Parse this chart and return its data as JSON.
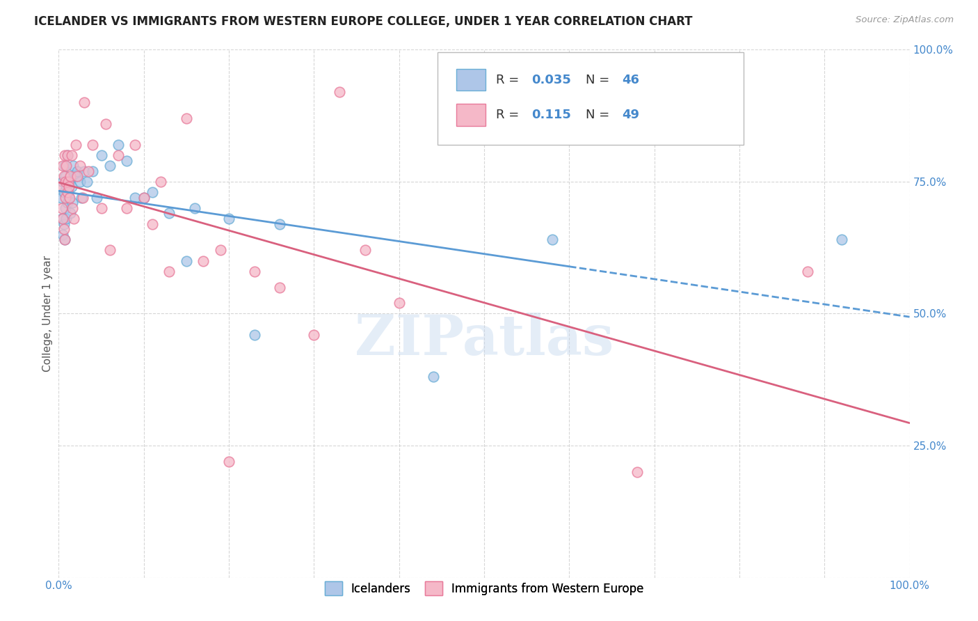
{
  "title": "ICELANDER VS IMMIGRANTS FROM WESTERN EUROPE COLLEGE, UNDER 1 YEAR CORRELATION CHART",
  "source": "Source: ZipAtlas.com",
  "ylabel": "College, Under 1 year",
  "legend_labels": [
    "Icelanders",
    "Immigrants from Western Europe"
  ],
  "R_blue": 0.035,
  "N_blue": 46,
  "R_pink": 0.115,
  "N_pink": 49,
  "blue_color": "#aec6e8",
  "pink_color": "#f5b8c8",
  "blue_edge_color": "#6aaed6",
  "pink_edge_color": "#e87a9a",
  "blue_line_color": "#5b9bd5",
  "pink_line_color": "#d9607e",
  "title_color": "#222222",
  "axis_color": "#4488cc",
  "watermark": "ZIPatlas",
  "blue_scatter_x": [
    0.003,
    0.004,
    0.005,
    0.005,
    0.006,
    0.006,
    0.007,
    0.007,
    0.008,
    0.008,
    0.009,
    0.009,
    0.01,
    0.01,
    0.011,
    0.012,
    0.013,
    0.014,
    0.015,
    0.016,
    0.017,
    0.018,
    0.02,
    0.022,
    0.025,
    0.027,
    0.03,
    0.033,
    0.04,
    0.045,
    0.05,
    0.06,
    0.07,
    0.08,
    0.09,
    0.1,
    0.11,
    0.13,
    0.15,
    0.16,
    0.2,
    0.23,
    0.26,
    0.44,
    0.58,
    0.92
  ],
  "blue_scatter_y": [
    0.72,
    0.68,
    0.75,
    0.65,
    0.73,
    0.67,
    0.78,
    0.64,
    0.76,
    0.7,
    0.74,
    0.68,
    0.8,
    0.71,
    0.73,
    0.72,
    0.75,
    0.69,
    0.74,
    0.71,
    0.78,
    0.76,
    0.76,
    0.77,
    0.75,
    0.72,
    0.77,
    0.75,
    0.77,
    0.72,
    0.8,
    0.78,
    0.82,
    0.79,
    0.72,
    0.72,
    0.73,
    0.69,
    0.6,
    0.7,
    0.68,
    0.46,
    0.67,
    0.38,
    0.64,
    0.64
  ],
  "pink_scatter_x": [
    0.003,
    0.004,
    0.005,
    0.005,
    0.006,
    0.006,
    0.007,
    0.007,
    0.008,
    0.008,
    0.009,
    0.01,
    0.01,
    0.011,
    0.012,
    0.013,
    0.014,
    0.015,
    0.016,
    0.018,
    0.02,
    0.022,
    0.025,
    0.028,
    0.03,
    0.035,
    0.04,
    0.05,
    0.055,
    0.06,
    0.07,
    0.08,
    0.09,
    0.1,
    0.11,
    0.12,
    0.13,
    0.15,
    0.17,
    0.19,
    0.2,
    0.23,
    0.26,
    0.3,
    0.33,
    0.36,
    0.4,
    0.68,
    0.88
  ],
  "pink_scatter_y": [
    0.74,
    0.7,
    0.78,
    0.68,
    0.76,
    0.66,
    0.8,
    0.64,
    0.75,
    0.72,
    0.78,
    0.8,
    0.73,
    0.75,
    0.74,
    0.72,
    0.76,
    0.8,
    0.7,
    0.68,
    0.82,
    0.76,
    0.78,
    0.72,
    0.9,
    0.77,
    0.82,
    0.7,
    0.86,
    0.62,
    0.8,
    0.7,
    0.82,
    0.72,
    0.67,
    0.75,
    0.58,
    0.87,
    0.6,
    0.62,
    0.22,
    0.58,
    0.55,
    0.46,
    0.92,
    0.62,
    0.52,
    0.2,
    0.58
  ],
  "xlim": [
    0.0,
    1.0
  ],
  "ylim": [
    0.0,
    1.0
  ],
  "blue_line_x_solid_end": 0.6,
  "grid_color": "#cccccc",
  "background_color": "#ffffff"
}
